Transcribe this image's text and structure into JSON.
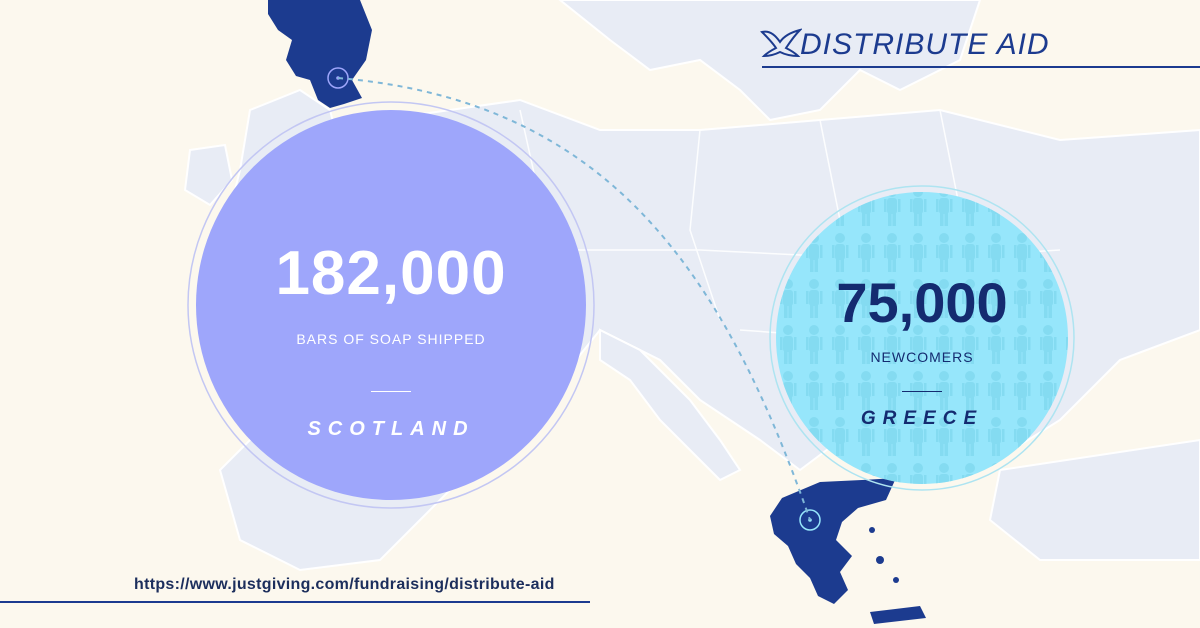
{
  "brand": {
    "name": "DISTRIBUTE AID",
    "logo_icon": "dove-icon",
    "color": "#1c3b8f"
  },
  "stats": [
    {
      "number": "182,000",
      "label": "BARS OF SOAP SHIPPED",
      "place": "SCOTLAND",
      "circle_color": "#9ea6fb"
    },
    {
      "number": "75,000",
      "label": "NEWCOMERS",
      "place": "GREECE",
      "circle_color": "#96e6fb"
    }
  ],
  "route": {
    "from": "Scotland",
    "to": "Greece",
    "style": "dashed-arc",
    "color": "#7fb7d8"
  },
  "map": {
    "land_color": "#e8ecf5",
    "highlight_color": "#1c3b8f",
    "background_color": "#fcf8ee"
  },
  "footer": {
    "url": "https://www.justgiving.com/fundraising/distribute-aid"
  }
}
